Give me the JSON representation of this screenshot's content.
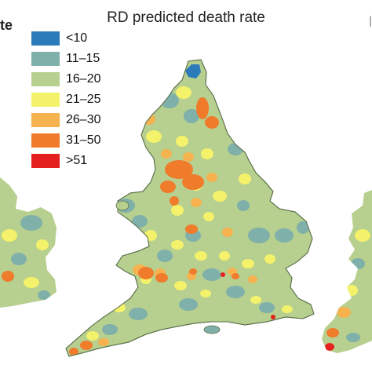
{
  "figure": {
    "title": "RD predicted death rate",
    "left_title_fragment": "te",
    "right_title_fragment": "l"
  },
  "legend": {
    "items": [
      {
        "label": "<10",
        "color": "#2b7bbb"
      },
      {
        "label": "11–15",
        "color": "#7fb0aa"
      },
      {
        "label": "16–20",
        "color": "#b7cf8f"
      },
      {
        "label": "21–25",
        "color": "#f4f26a"
      },
      {
        "label": "26–30",
        "color": "#f6b24e"
      },
      {
        "label": "31–50",
        "color": "#ef7b2b"
      },
      {
        "label": ">51",
        "color": "#e5211f"
      }
    ]
  },
  "map": {
    "base_color": "#b7cf8f",
    "outline_color": "#5c6f4a",
    "water_color": "#ffffff"
  }
}
